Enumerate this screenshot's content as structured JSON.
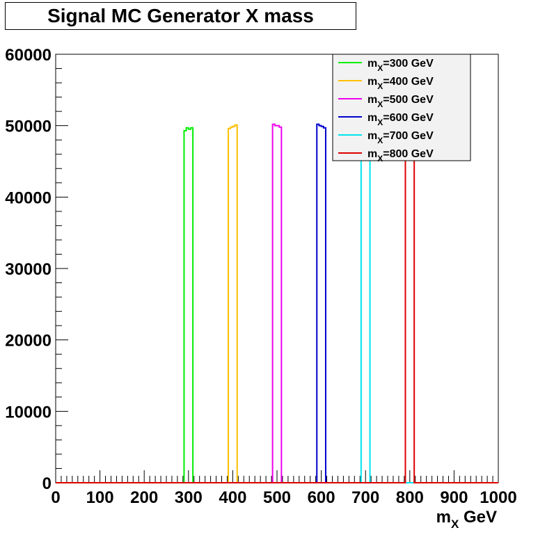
{
  "chart_data": {
    "type": "line",
    "title": "Signal MC Generator X mass",
    "xlabel": {
      "main": "m",
      "sub": "X",
      "suffix": " GeV"
    },
    "ylabel": "",
    "xlim": [
      0,
      1000
    ],
    "ylim": [
      0,
      60000
    ],
    "x_ticks": [
      "0",
      "100",
      "200",
      "300",
      "400",
      "500",
      "600",
      "700",
      "800",
      "900",
      "1000"
    ],
    "y_ticks": [
      "0",
      "10000",
      "20000",
      "30000",
      "40000",
      "50000",
      "60000"
    ],
    "legend_position": "top-right",
    "series": [
      {
        "name": {
          "main": "m",
          "sub": "X",
          "rest": "=300 GeV"
        },
        "color": "#00ee00",
        "peak_x": 300,
        "x_low": 290,
        "x_high": 310,
        "bins": [
          {
            "x": 290,
            "y": 49300
          },
          {
            "x": 295,
            "y": 49700
          },
          {
            "x": 300,
            "y": 49500
          },
          {
            "x": 305,
            "y": 49700
          }
        ]
      },
      {
        "name": {
          "main": "m",
          "sub": "X",
          "rest": "=400 GeV"
        },
        "color": "#ffc000",
        "peak_x": 400,
        "x_low": 390,
        "x_high": 410,
        "bins": [
          {
            "x": 390,
            "y": 49600
          },
          {
            "x": 395,
            "y": 49800
          },
          {
            "x": 400,
            "y": 49900
          },
          {
            "x": 405,
            "y": 50100
          }
        ]
      },
      {
        "name": {
          "main": "m",
          "sub": "X",
          "rest": "=500 GeV"
        },
        "color": "#ee00ee",
        "peak_x": 500,
        "x_low": 490,
        "x_high": 510,
        "bins": [
          {
            "x": 490,
            "y": 50200
          },
          {
            "x": 495,
            "y": 50000
          },
          {
            "x": 500,
            "y": 50000
          },
          {
            "x": 505,
            "y": 49800
          }
        ]
      },
      {
        "name": {
          "main": "m",
          "sub": "X",
          "rest": "=600 GeV"
        },
        "color": "#0000cc",
        "peak_x": 600,
        "x_low": 590,
        "x_high": 610,
        "bins": [
          {
            "x": 590,
            "y": 50200
          },
          {
            "x": 595,
            "y": 50000
          },
          {
            "x": 600,
            "y": 49900
          },
          {
            "x": 605,
            "y": 49700
          }
        ]
      },
      {
        "name": {
          "main": "m",
          "sub": "X",
          "rest": "=700 GeV"
        },
        "color": "#00e5ee",
        "peak_x": 700,
        "x_low": 690,
        "x_high": 710,
        "bins": [
          {
            "x": 690,
            "y": 50000
          },
          {
            "x": 695,
            "y": 50000
          },
          {
            "x": 700,
            "y": 50000
          },
          {
            "x": 705,
            "y": 50000
          }
        ]
      },
      {
        "name": {
          "main": "m",
          "sub": "X",
          "rest": "=800 GeV"
        },
        "color": "#dd0000",
        "peak_x": 800,
        "x_low": 790,
        "x_high": 810,
        "bins": [
          {
            "x": 790,
            "y": 50000
          },
          {
            "x": 795,
            "y": 50000
          },
          {
            "x": 800,
            "y": 50000
          },
          {
            "x": 805,
            "y": 50000
          }
        ]
      }
    ]
  }
}
